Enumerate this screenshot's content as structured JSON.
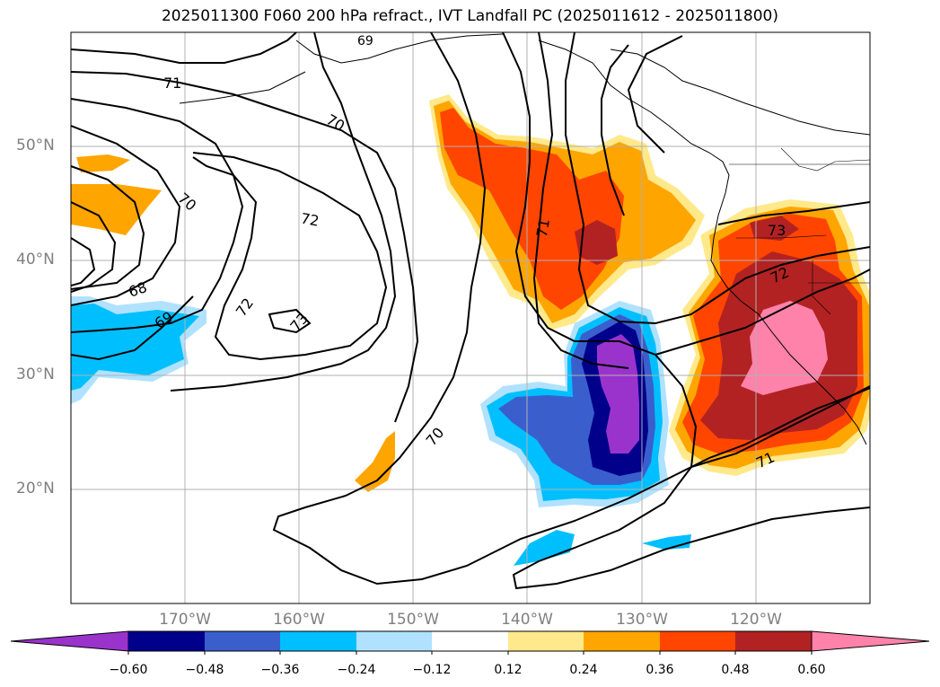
{
  "title": "2025011300 F060 200 hPa refract., IVT Landfall PC (2025011612 - 2025011800)",
  "map": {
    "lat_labels": [
      "50°N",
      "40°N",
      "30°N",
      "20°N"
    ],
    "lon_labels": [
      "170°W",
      "160°W",
      "150°W",
      "140°W",
      "130°W",
      "120°W"
    ],
    "contour_labels": [
      "71",
      "70",
      "70",
      "72",
      "68",
      "69",
      "72",
      "73",
      "70",
      "71",
      "73",
      "72",
      "71",
      "69"
    ]
  },
  "colorbar": {
    "ticks": [
      "−0.60",
      "−0.48",
      "−0.36",
      "−0.24",
      "−0.12",
      "0.12",
      "0.24",
      "0.36",
      "0.48",
      "0.60"
    ],
    "colors": [
      "#9a33cc",
      "#00008b",
      "#3a5fcd",
      "#00bfff",
      "#b0e2ff",
      "#ffffff",
      "#ffe98a",
      "#ffa500",
      "#ff4500",
      "#b22222",
      "#ff82ab"
    ]
  }
}
